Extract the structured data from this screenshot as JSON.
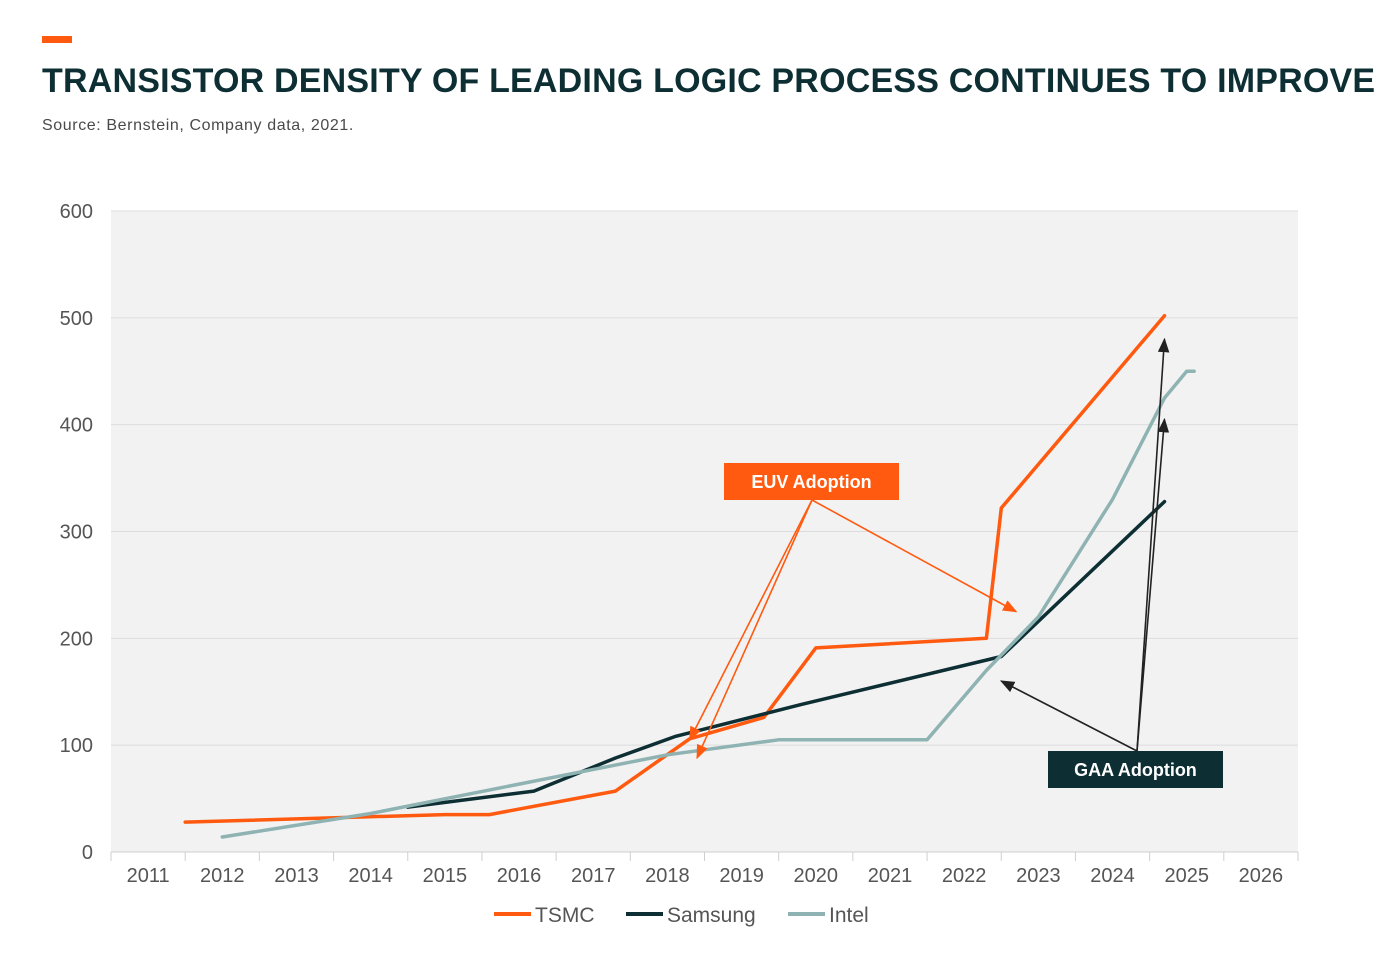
{
  "header": {
    "title": "TRANSISTOR DENSITY OF LEADING LOGIC PROCESS CONTINUES TO IMPROVE",
    "source": "Source: Bernstein, Company data, 2021.",
    "accent_color": "#ff5a0f",
    "title_color": "#0d2f33"
  },
  "chart_data": {
    "type": "line",
    "title": "",
    "xlabel": "",
    "ylabel": "",
    "categories": [
      "2011",
      "2012",
      "2013",
      "2014",
      "2015",
      "2016",
      "2017",
      "2018",
      "2019",
      "2020",
      "2021",
      "2022",
      "2023",
      "2024",
      "2025",
      "2026"
    ],
    "ylim": [
      0,
      600
    ],
    "yticks": [
      0,
      100,
      200,
      300,
      400,
      500,
      600
    ],
    "grid": true,
    "background": "#f2f2f2",
    "legend": "bottom",
    "series": [
      {
        "name": "TSMC",
        "color": "#ff5a0f",
        "points": [
          [
            2011.5,
            28
          ],
          [
            2015,
            35
          ],
          [
            2015.6,
            35
          ],
          [
            2017.3,
            57
          ],
          [
            2018.3,
            106
          ],
          [
            2019.3,
            126
          ],
          [
            2020,
            191
          ],
          [
            2022.3,
            200
          ],
          [
            2022.5,
            322
          ],
          [
            2024.7,
            502
          ]
        ]
      },
      {
        "name": "Samsung",
        "color": "#0d2f33",
        "points": [
          [
            2014.5,
            42
          ],
          [
            2016.2,
            57
          ],
          [
            2017.3,
            88
          ],
          [
            2018.1,
            108
          ],
          [
            2019.8,
            138
          ],
          [
            2022.5,
            183
          ],
          [
            2024.7,
            328
          ]
        ]
      },
      {
        "name": "Intel",
        "color": "#8fb3b2",
        "points": [
          [
            2012,
            14
          ],
          [
            2014,
            36
          ],
          [
            2018,
            91
          ],
          [
            2019.5,
            105
          ],
          [
            2021.5,
            105
          ],
          [
            2022.3,
            170
          ],
          [
            2023,
            220
          ],
          [
            2024,
            330
          ],
          [
            2024.7,
            425
          ],
          [
            2025,
            450
          ],
          [
            2025.1,
            450
          ]
        ]
      }
    ],
    "annotations": [
      {
        "text": "EUV Adoption",
        "box_color": "#ff5a0f",
        "arrow_color": "#ff5a0f",
        "points_to": [
          [
            2018.3,
            105
          ],
          [
            2018.4,
            88
          ],
          [
            2022.7,
            225
          ]
        ]
      },
      {
        "text": "GAA Adoption",
        "box_color": "#0d2f33",
        "arrow_color": "#222222",
        "points_to": [
          [
            2022.5,
            160
          ],
          [
            2024.7,
            480
          ],
          [
            2024.7,
            405
          ]
        ]
      }
    ]
  }
}
